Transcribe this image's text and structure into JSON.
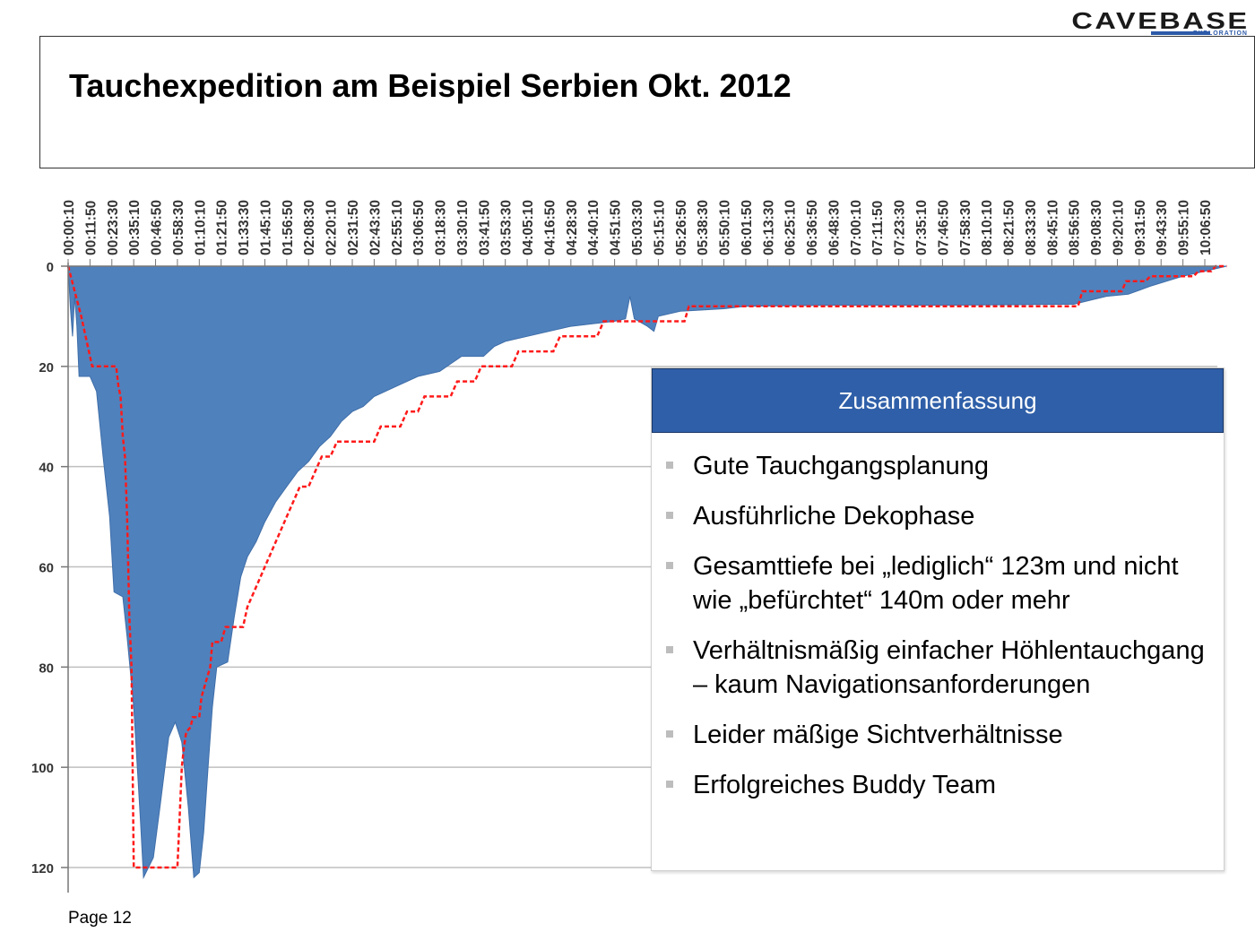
{
  "logo": {
    "name": "CAVEBASE",
    "tagline": "EXPLORATION"
  },
  "title": "Tauchexpedition am Beispiel Serbien Okt. 2012",
  "summary": {
    "header": "Zusammenfassung",
    "items": [
      "Gute Tauchgangsplanung",
      "Ausführliche Dekophase",
      "Gesamttiefe bei „lediglich“ 123m und nicht wie „befürchtet“ 140m oder mehr",
      "Verhältnismäßig einfacher Höhlentauchgang – kaum Navigationsanforderungen",
      "Leider mäßige Sichtverhältnisse",
      "Erfolgreiches Buddy Team"
    ]
  },
  "page": "Page 12",
  "colors": {
    "area": "#4f81bd",
    "plan": "#ff1a1a",
    "header": "#2f5fa8",
    "grid": "#bfbfbf"
  },
  "chart_data": {
    "type": "area",
    "x_ticks": [
      "00:00:10",
      "00:11:50",
      "00:23:30",
      "00:35:10",
      "00:46:50",
      "00:58:30",
      "01:10:10",
      "01:21:50",
      "01:33:30",
      "01:45:10",
      "01:56:50",
      "02:08:30",
      "02:20:10",
      "02:31:50",
      "02:43:30",
      "02:55:10",
      "03:06:50",
      "03:18:30",
      "03:30:10",
      "03:41:50",
      "03:53:30",
      "04:05:10",
      "04:16:50",
      "04:28:30",
      "04:40:10",
      "04:51:50",
      "05:03:30",
      "05:15:10",
      "05:26:50",
      "05:38:30",
      "05:50:10",
      "06:01:50",
      "06:13:30",
      "06:25:10",
      "06:36:50",
      "06:48:30",
      "07:00:10",
      "07:11:50",
      "07:23:30",
      "07:35:10",
      "07:46:50",
      "07:58:30",
      "08:10:10",
      "08:21:50",
      "08:33:30",
      "08:45:10",
      "08:56:50",
      "09:08:30",
      "09:20:10",
      "09:31:50",
      "09:43:30",
      "09:55:10",
      "10:06:50"
    ],
    "y_ticks": [
      "0",
      "20",
      "40",
      "60",
      "80",
      "100",
      "120"
    ],
    "ylim": [
      0,
      120
    ],
    "y_inverted": true,
    "grid": true,
    "series": [
      {
        "type": "area",
        "points": [
          [
            0,
            0
          ],
          [
            0.1,
            8
          ],
          [
            0.2,
            14
          ],
          [
            0.3,
            6
          ],
          [
            0.4,
            12
          ],
          [
            0.5,
            22
          ],
          [
            1,
            22
          ],
          [
            1.3,
            25
          ],
          [
            1.6,
            38
          ],
          [
            1.9,
            50
          ],
          [
            2.1,
            65
          ],
          [
            2.5,
            66
          ],
          [
            2.7,
            74
          ],
          [
            3.0,
            88
          ],
          [
            3.3,
            110
          ],
          [
            3.45,
            122
          ],
          [
            3.9,
            118
          ],
          [
            4.2,
            108
          ],
          [
            4.6,
            94
          ],
          [
            4.9,
            91
          ],
          [
            5.2,
            95
          ],
          [
            5.5,
            108
          ],
          [
            5.75,
            122
          ],
          [
            6.0,
            121
          ],
          [
            6.2,
            113
          ],
          [
            6.4,
            100
          ],
          [
            6.6,
            88
          ],
          [
            6.8,
            80
          ],
          [
            7.3,
            79
          ],
          [
            7.6,
            70
          ],
          [
            7.9,
            62
          ],
          [
            8.2,
            58
          ],
          [
            8.6,
            55
          ],
          [
            9,
            51
          ],
          [
            9.5,
            47
          ],
          [
            10,
            44
          ],
          [
            10.5,
            41
          ],
          [
            11,
            39
          ],
          [
            11.5,
            36
          ],
          [
            12,
            34
          ],
          [
            12.5,
            31
          ],
          [
            13,
            29
          ],
          [
            13.5,
            28
          ],
          [
            14,
            26
          ],
          [
            14.5,
            25
          ],
          [
            15,
            24
          ],
          [
            16,
            22
          ],
          [
            17,
            21
          ],
          [
            17.5,
            19.5
          ],
          [
            18,
            18
          ],
          [
            19,
            18
          ],
          [
            19.5,
            16
          ],
          [
            20,
            15
          ],
          [
            21,
            14
          ],
          [
            22,
            13
          ],
          [
            23,
            12
          ],
          [
            24,
            11.5
          ],
          [
            25,
            11
          ],
          [
            25.5,
            10.5
          ],
          [
            25.7,
            6
          ],
          [
            25.9,
            10.5
          ],
          [
            26.5,
            12
          ],
          [
            26.8,
            13
          ],
          [
            27,
            10
          ],
          [
            28,
            9
          ],
          [
            30,
            8.5
          ],
          [
            31,
            8
          ],
          [
            35,
            7.8
          ],
          [
            40,
            7.8
          ],
          [
            46,
            7.6
          ],
          [
            47.5,
            6
          ],
          [
            48.5,
            5.6
          ],
          [
            49.5,
            4
          ],
          [
            51,
            2
          ],
          [
            52,
            1
          ],
          [
            53,
            0
          ]
        ]
      },
      {
        "type": "line",
        "points": [
          [
            0,
            0
          ],
          [
            0.6,
            10
          ],
          [
            1.1,
            20
          ],
          [
            1.8,
            20
          ],
          [
            2.2,
            20
          ],
          [
            2.3,
            24
          ],
          [
            2.4,
            26
          ],
          [
            2.5,
            34
          ],
          [
            2.6,
            38
          ],
          [
            2.7,
            50
          ],
          [
            2.8,
            70
          ],
          [
            2.9,
            80
          ],
          [
            3.0,
            120
          ],
          [
            5.0,
            120
          ],
          [
            5.1,
            110
          ],
          [
            5.2,
            100
          ],
          [
            5.3,
            96
          ],
          [
            5.4,
            93
          ],
          [
            5.6,
            92
          ],
          [
            5.7,
            90
          ],
          [
            6.0,
            90
          ],
          [
            6.1,
            86
          ],
          [
            6.3,
            83
          ],
          [
            6.5,
            80
          ],
          [
            6.6,
            75
          ],
          [
            7.0,
            75
          ],
          [
            7.2,
            72
          ],
          [
            8.0,
            72
          ],
          [
            8.2,
            68
          ],
          [
            8.5,
            65
          ],
          [
            8.8,
            62
          ],
          [
            9.1,
            59
          ],
          [
            9.4,
            56
          ],
          [
            9.7,
            53
          ],
          [
            10.0,
            50
          ],
          [
            10.3,
            47
          ],
          [
            10.6,
            44
          ],
          [
            11.0,
            44
          ],
          [
            11.3,
            41
          ],
          [
            11.6,
            38
          ],
          [
            12.0,
            38
          ],
          [
            12.3,
            35
          ],
          [
            14.0,
            35
          ],
          [
            14.3,
            32
          ],
          [
            15.2,
            32
          ],
          [
            15.5,
            29
          ],
          [
            16.0,
            29
          ],
          [
            16.3,
            26
          ],
          [
            17.5,
            26
          ],
          [
            17.8,
            23
          ],
          [
            18.6,
            23
          ],
          [
            18.9,
            20
          ],
          [
            20.3,
            20
          ],
          [
            20.6,
            17
          ],
          [
            22.2,
            17
          ],
          [
            22.5,
            14
          ],
          [
            24.2,
            14
          ],
          [
            24.5,
            11
          ],
          [
            28.2,
            11
          ],
          [
            28.4,
            8
          ],
          [
            46.2,
            8
          ],
          [
            46.4,
            5
          ],
          [
            48.2,
            5
          ],
          [
            48.4,
            3
          ],
          [
            49.3,
            3
          ],
          [
            49.5,
            2
          ],
          [
            51.5,
            2
          ],
          [
            51.7,
            1
          ],
          [
            52.3,
            1
          ],
          [
            52.5,
            0
          ],
          [
            53,
            0
          ]
        ]
      }
    ]
  }
}
